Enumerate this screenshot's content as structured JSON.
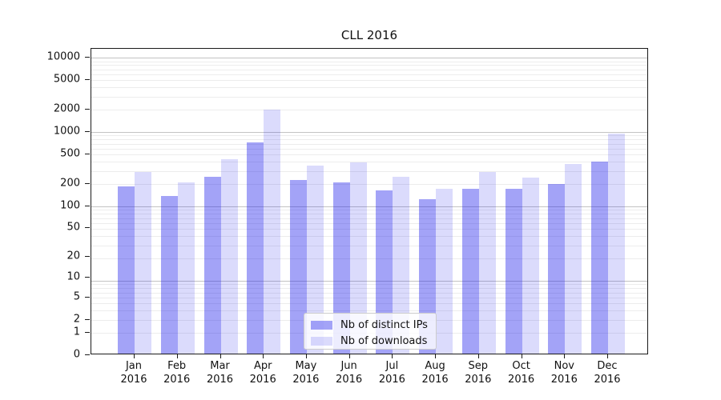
{
  "chart_data": {
    "type": "bar",
    "title": "CLL 2016",
    "categories": [
      "Jan 2016",
      "Feb 2016",
      "Mar 2016",
      "Apr 2016",
      "May 2016",
      "Jun 2016",
      "Jul 2016",
      "Aug 2016",
      "Sep 2016",
      "Oct 2016",
      "Nov 2016",
      "Dec 2016"
    ],
    "series": [
      {
        "name": "Nb of distinct IPs",
        "key": "distinct-ips",
        "color": "rgba(25,25,235,0.40)",
        "values": [
          175,
          130,
          240,
          695,
          215,
          200,
          157,
          117,
          165,
          165,
          191,
          385
        ]
      },
      {
        "name": "Nb of downloads",
        "key": "downloads",
        "color": "rgba(25,25,235,0.155)",
        "values": [
          278,
          200,
          410,
          1920,
          338,
          374,
          238,
          165,
          277,
          233,
          355,
          910
        ]
      }
    ],
    "yscale": "log1p",
    "y_ticks": [
      0,
      1,
      2,
      5,
      10,
      20,
      50,
      100,
      200,
      500,
      1000,
      2000,
      5000,
      10000
    ],
    "ylim": [
      0,
      13200
    ],
    "xlabel": "",
    "ylabel": "",
    "grid": "horizontal log major+minor",
    "legend_position": "inside lower center"
  },
  "colors": {
    "bar_distinct_ips": "rgba(25,25,235,0.40)",
    "bar_downloads": "rgba(25,25,235,0.155)",
    "grid_major": "#c3c3c3",
    "grid_minor": "#ececec",
    "spine": "#1a1a1a",
    "text": "#111111",
    "legend_border": "#cccccc",
    "legend_bg": "rgba(255,255,255,0.8)"
  }
}
